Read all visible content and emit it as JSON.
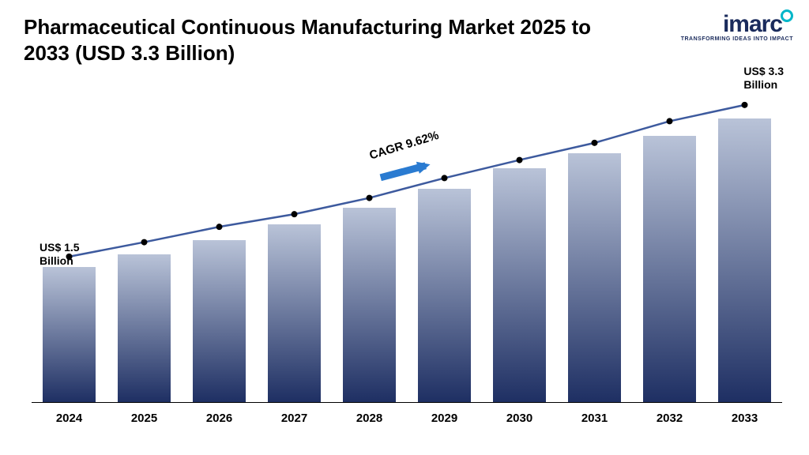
{
  "title_line1": "Pharmaceutical Continuous Manufacturing Market 2025 to",
  "title_line2": "2033 (USD 3.3 Billion)",
  "logo": {
    "text": "imarc",
    "tagline": "TRANSFORMING IDEAS INTO IMPACT"
  },
  "chart": {
    "type": "bar+line",
    "categories": [
      "2024",
      "2025",
      "2026",
      "2027",
      "2028",
      "2029",
      "2030",
      "2031",
      "2032",
      "2033"
    ],
    "values": [
      1.5,
      1.64,
      1.8,
      1.97,
      2.16,
      2.37,
      2.6,
      2.76,
      2.96,
      3.15
    ],
    "line_values": [
      1.62,
      1.78,
      1.95,
      2.09,
      2.27,
      2.49,
      2.69,
      2.88,
      3.12,
      3.3
    ],
    "y_max": 3.5,
    "bar_gradient_top": "#b9c3d8",
    "bar_gradient_bottom": "#1e2f63",
    "line_color": "#3d5a9e",
    "marker_color": "#000000",
    "marker_radius": 4,
    "line_width": 2.5,
    "background_color": "#ffffff",
    "axis_color": "#000000",
    "label_fontsize": 15,
    "annotation_left": {
      "l1": "US$ 1.5",
      "l2": "Billion"
    },
    "annotation_right": {
      "l1": "US$ 3.3",
      "l2": "Billion"
    },
    "cagr_label": "CAGR 9.62%",
    "cagr_angle_deg": -17,
    "arrow_color": "#2a7bd1"
  }
}
